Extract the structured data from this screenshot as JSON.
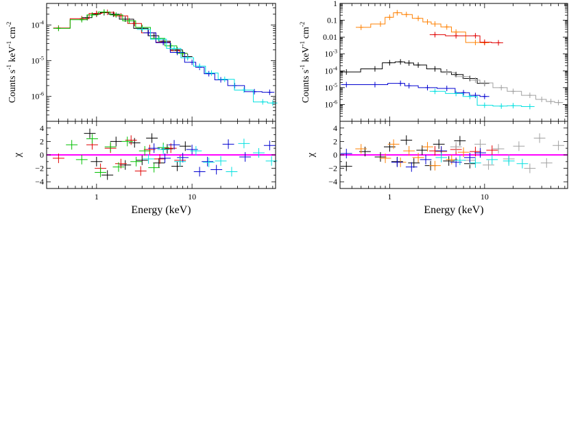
{
  "chart_data": [
    {
      "type": "line",
      "panel": "left-spectrum",
      "ylabel": "Counts s-1 keV-1 cm-2",
      "xscale": "log",
      "yscale": "log",
      "xlim": [
        0.3,
        75
      ],
      "ylim": [
        2e-07,
        0.0004
      ],
      "x_ticks": [
        1,
        10
      ],
      "x_tick_labels": [
        "1",
        "10"
      ],
      "y_ticks": [
        1e-06,
        1e-05,
        0.0001
      ],
      "y_tick_labels": [
        "10-6",
        "10-5",
        "10-4"
      ],
      "series": [
        {
          "color": "#000000",
          "step_model": true,
          "points": [
            [
              0.8,
              0.00016
            ],
            [
              1.0,
              0.0002
            ],
            [
              1.2,
              0.00022
            ],
            [
              1.5,
              0.0002
            ],
            [
              2.0,
              0.000145
            ],
            [
              3.0,
              8e-05
            ],
            [
              4.0,
              5e-05
            ],
            [
              5.0,
              3.5e-05
            ],
            [
              7.0,
              2e-05
            ],
            [
              9.0,
              1.3e-05
            ]
          ]
        },
        {
          "color": "#e00000",
          "step_model": true,
          "points": [
            [
              0.4,
              8.2e-05
            ],
            [
              0.7,
              0.00015
            ],
            [
              1.0,
              0.00021
            ],
            [
              1.3,
              0.000225
            ],
            [
              1.8,
              0.00018
            ],
            [
              2.5,
              0.00011
            ],
            [
              3.5,
              6e-05
            ],
            [
              5.0,
              3.3e-05
            ],
            [
              7.0,
              1.9e-05
            ],
            [
              8.0,
              1.6e-05
            ]
          ]
        },
        {
          "color": "#00c000",
          "step_model": true,
          "points": [
            [
              0.4,
              8e-05
            ],
            [
              0.7,
              0.00014
            ],
            [
              0.9,
              0.00019
            ],
            [
              1.2,
              0.00023
            ],
            [
              1.6,
              0.00019
            ],
            [
              2.2,
              0.00013
            ],
            [
              3.0,
              8.5e-05
            ],
            [
              4.5,
              4.2e-05
            ],
            [
              6.0,
              2.6e-05
            ],
            [
              8.0,
              1.6e-05
            ]
          ]
        },
        {
          "color": "#0000d0",
          "step_model": true,
          "points": [
            [
              3.5,
              6e-05
            ],
            [
              5.0,
              3.2e-05
            ],
            [
              7.0,
              1.7e-05
            ],
            [
              10.0,
              9e-06
            ],
            [
              12.0,
              6.5e-06
            ],
            [
              15.0,
              4.3e-06
            ],
            [
              20.0,
              2.9e-06
            ],
            [
              28.0,
              2e-06
            ],
            [
              45.0,
              1.35e-06
            ],
            [
              65.0,
              1.3e-06
            ]
          ]
        },
        {
          "color": "#00e0e0",
          "step_model": true,
          "points": [
            [
              3.0,
              7.5e-05
            ],
            [
              4.5,
              4e-05
            ],
            [
              6.5,
              2.2e-05
            ],
            [
              9.0,
              1.2e-05
            ],
            [
              12.0,
              7e-06
            ],
            [
              16.0,
              4.5e-06
            ],
            [
              22.0,
              3e-06
            ],
            [
              35.0,
              1.5e-06
            ],
            [
              55.0,
              7e-07
            ],
            [
              70.0,
              6.5e-07
            ]
          ]
        }
      ]
    },
    {
      "type": "scatter",
      "panel": "left-residuals",
      "ylabel": "χ",
      "xlabel": "Energy (keV)",
      "xscale": "log",
      "xlim": [
        0.3,
        75
      ],
      "ylim": [
        -5,
        5
      ],
      "y_ticks": [
        -4,
        -2,
        0,
        2,
        4
      ],
      "y_tick_labels": [
        "−4",
        "−2",
        "0",
        "2",
        "4"
      ],
      "zero_line_color": "#ff00ff",
      "series": [
        {
          "color": "#000000",
          "points": [
            [
              0.85,
              3.2
            ],
            [
              1.0,
              -1.0
            ],
            [
              1.3,
              -3.0
            ],
            [
              1.6,
              2.0
            ],
            [
              2.0,
              -1.5
            ],
            [
              2.5,
              1.8
            ],
            [
              3.0,
              -0.8
            ],
            [
              3.8,
              2.5
            ],
            [
              4.5,
              -1.2
            ],
            [
              5.5,
              0.9
            ],
            [
              7.0,
              -1.7
            ],
            [
              8.5,
              1.3
            ]
          ]
        },
        {
          "color": "#e00000",
          "points": [
            [
              0.4,
              -0.5
            ],
            [
              0.9,
              1.5
            ],
            [
              1.1,
              -2.0
            ],
            [
              1.4,
              1.0
            ],
            [
              1.8,
              -1.3
            ],
            [
              2.3,
              2.2
            ],
            [
              2.9,
              -2.4
            ],
            [
              3.6,
              0.8
            ],
            [
              4.6,
              -0.6
            ],
            [
              6.0,
              1.0
            ],
            [
              7.5,
              -0.8
            ]
          ]
        },
        {
          "color": "#00c000",
          "points": [
            [
              0.55,
              1.5
            ],
            [
              0.7,
              -0.7
            ],
            [
              0.9,
              2.4
            ],
            [
              1.1,
              -2.6
            ],
            [
              1.4,
              1.2
            ],
            [
              1.7,
              -1.8
            ],
            [
              2.1,
              2.0
            ],
            [
              2.6,
              -1.0
            ],
            [
              3.2,
              0.6
            ],
            [
              4.0,
              -1.9
            ],
            [
              5.0,
              1.1
            ]
          ]
        },
        {
          "color": "#0000d0",
          "points": [
            [
              4.0,
              1.0
            ],
            [
              5.2,
              -0.5
            ],
            [
              6.5,
              1.5
            ],
            [
              8.0,
              -0.4
            ],
            [
              10.0,
              0.8
            ],
            [
              12.0,
              -2.5
            ],
            [
              14.5,
              -1.0
            ],
            [
              18.0,
              -2.2
            ],
            [
              24.0,
              1.6
            ],
            [
              36.0,
              -0.3
            ],
            [
              65.0,
              1.4
            ]
          ]
        },
        {
          "color": "#00e0e0",
          "points": [
            [
              3.5,
              -0.6
            ],
            [
              5.0,
              0.8
            ],
            [
              7.5,
              -1.0
            ],
            [
              11.0,
              0.6
            ],
            [
              15.0,
              -1.1
            ],
            [
              20.0,
              -0.9
            ],
            [
              26.0,
              -2.5
            ],
            [
              35.0,
              1.7
            ],
            [
              50.0,
              0.3
            ],
            [
              68.0,
              -0.9
            ]
          ]
        }
      ]
    },
    {
      "type": "line",
      "panel": "right-spectrum",
      "ylabel": "Counts s-1 keV-1 cm-2",
      "xscale": "log",
      "yscale": "log",
      "xlim": [
        0.3,
        75
      ],
      "ylim": [
        1e-07,
        1
      ],
      "x_ticks": [
        1,
        10
      ],
      "x_tick_labels": [
        "1",
        "10"
      ],
      "y_ticks": [
        1e-06,
        1e-05,
        0.0001,
        0.001,
        0.01,
        0.1,
        1
      ],
      "y_tick_labels": [
        "10-6",
        "10-5",
        "10-4",
        "10-3",
        "0.01",
        "0.1",
        "1"
      ],
      "series": [
        {
          "color": "#ff8000",
          "step_model": true,
          "points": [
            [
              0.5,
              0.038
            ],
            [
              0.8,
              0.06
            ],
            [
              1.0,
              0.15
            ],
            [
              1.2,
              0.28
            ],
            [
              1.5,
              0.22
            ],
            [
              2.0,
              0.13
            ],
            [
              2.5,
              0.08
            ],
            [
              3.0,
              0.06
            ],
            [
              4.0,
              0.04
            ],
            [
              5.0,
              0.02
            ],
            [
              8.0,
              0.0048
            ],
            [
              10.0,
              0.0047
            ]
          ]
        },
        {
          "color": "#e00000",
          "step_model": true,
          "points": [
            [
              3.0,
              0.014
            ],
            [
              5.0,
              0.012
            ],
            [
              8.0,
              0.012
            ],
            [
              10.0,
              0.005
            ],
            [
              14.0,
              0.0046
            ]
          ]
        },
        {
          "color": "#000000",
          "step_model": true,
          "points": [
            [
              0.35,
              8.5e-05
            ],
            [
              0.7,
              0.00013
            ],
            [
              1.0,
              0.0003
            ],
            [
              1.3,
              0.00034
            ],
            [
              1.6,
              0.00029
            ],
            [
              2.0,
              0.00022
            ],
            [
              3.0,
              0.00013
            ],
            [
              4.0,
              8.5e-05
            ],
            [
              5.0,
              6e-05
            ],
            [
              7.0,
              3.5e-05
            ],
            [
              10.0,
              1.8e-05
            ]
          ]
        },
        {
          "color": "#a0a0a0",
          "step_model": true,
          "points": [
            [
              4.0,
              8e-05
            ],
            [
              6.0,
              4.5e-05
            ],
            [
              8.0,
              2.8e-05
            ],
            [
              10.0,
              1.9e-05
            ],
            [
              15.0,
              1e-05
            ],
            [
              20.0,
              6e-06
            ],
            [
              30.0,
              3.5e-06
            ],
            [
              40.0,
              2e-06
            ],
            [
              50.0,
              1.5e-06
            ],
            [
              60.0,
              1.3e-06
            ]
          ]
        },
        {
          "color": "#0000d0",
          "step_model": true,
          "points": [
            [
              0.35,
              1.5e-05
            ],
            [
              0.7,
              1.5e-05
            ],
            [
              1.3,
              1.8e-05
            ],
            [
              1.6,
              1.3e-05
            ],
            [
              2.5,
              1e-05
            ],
            [
              4.0,
              9e-06
            ],
            [
              6.0,
              5e-06
            ],
            [
              8.0,
              3.5e-06
            ],
            [
              10.0,
              3e-06
            ]
          ]
        },
        {
          "color": "#00e0e0",
          "step_model": true,
          "points": [
            [
              3.0,
              6e-06
            ],
            [
              5.0,
              4.5e-06
            ],
            [
              7.0,
              3e-06
            ],
            [
              10.0,
              9e-07
            ],
            [
              15.0,
              8e-07
            ],
            [
              20.0,
              8.5e-07
            ],
            [
              30.0,
              7.5e-07
            ]
          ]
        }
      ]
    },
    {
      "type": "scatter",
      "panel": "right-residuals",
      "ylabel": "χ",
      "xlabel": "Energy (keV)",
      "xscale": "log",
      "xlim": [
        0.3,
        75
      ],
      "ylim": [
        -5,
        5
      ],
      "y_ticks": [
        -4,
        -2,
        0,
        2,
        4
      ],
      "y_tick_labels": [
        "−4",
        "−2",
        "0",
        "2",
        "4"
      ],
      "zero_line_color": "#ff00ff",
      "series": [
        {
          "color": "#000000",
          "points": [
            [
              0.35,
              -1.7
            ],
            [
              0.55,
              0.5
            ],
            [
              0.8,
              -0.3
            ],
            [
              1.0,
              1.2
            ],
            [
              1.2,
              -1.0
            ],
            [
              1.5,
              2.2
            ],
            [
              1.8,
              -1.2
            ],
            [
              2.2,
              0.7
            ],
            [
              2.7,
              -1.6
            ],
            [
              3.3,
              1.6
            ],
            [
              4.2,
              -0.9
            ],
            [
              5.5,
              2.1
            ],
            [
              7.0,
              -1.3
            ]
          ]
        },
        {
          "color": "#ff8000",
          "points": [
            [
              0.5,
              0.9
            ],
            [
              0.9,
              -0.5
            ],
            [
              1.1,
              1.6
            ],
            [
              1.3,
              -1.1
            ],
            [
              1.6,
              0.6
            ],
            [
              2.0,
              -0.4
            ],
            [
              2.5,
              1.2
            ],
            [
              3.0,
              -1.6
            ],
            [
              3.5,
              0.5
            ],
            [
              4.5,
              -0.7
            ],
            [
              6.0,
              0.4
            ]
          ]
        },
        {
          "color": "#e00000",
          "points": [
            [
              3.0,
              0.6
            ],
            [
              5.0,
              0.8
            ],
            [
              8.0,
              0.5
            ],
            [
              12.0,
              0.7
            ]
          ]
        },
        {
          "color": "#a0a0a0",
          "points": [
            [
              5.0,
              1.2
            ],
            [
              7.0,
              -0.8
            ],
            [
              9.0,
              1.6
            ],
            [
              11.0,
              -1.5
            ],
            [
              14.0,
              0.9
            ],
            [
              18.0,
              -0.6
            ],
            [
              23.0,
              1.3
            ],
            [
              30.0,
              -2.0
            ],
            [
              38.0,
              2.5
            ],
            [
              45.0,
              -1.2
            ],
            [
              60.0,
              1.4
            ]
          ]
        },
        {
          "color": "#0000d0",
          "points": [
            [
              0.35,
              0.2
            ],
            [
              1.2,
              -1.1
            ],
            [
              1.7,
              -1.8
            ],
            [
              2.4,
              -0.7
            ],
            [
              3.5,
              0.6
            ],
            [
              5.0,
              -1.1
            ],
            [
              7.0,
              -0.4
            ],
            [
              9.0,
              0.3
            ]
          ]
        },
        {
          "color": "#00e0e0",
          "points": [
            [
              3.5,
              -0.4
            ],
            [
              5.5,
              -0.8
            ],
            [
              8.0,
              -1.2
            ],
            [
              12.0,
              -0.7
            ],
            [
              18.0,
              -0.9
            ],
            [
              25.0,
              -1.3
            ]
          ]
        }
      ]
    }
  ]
}
